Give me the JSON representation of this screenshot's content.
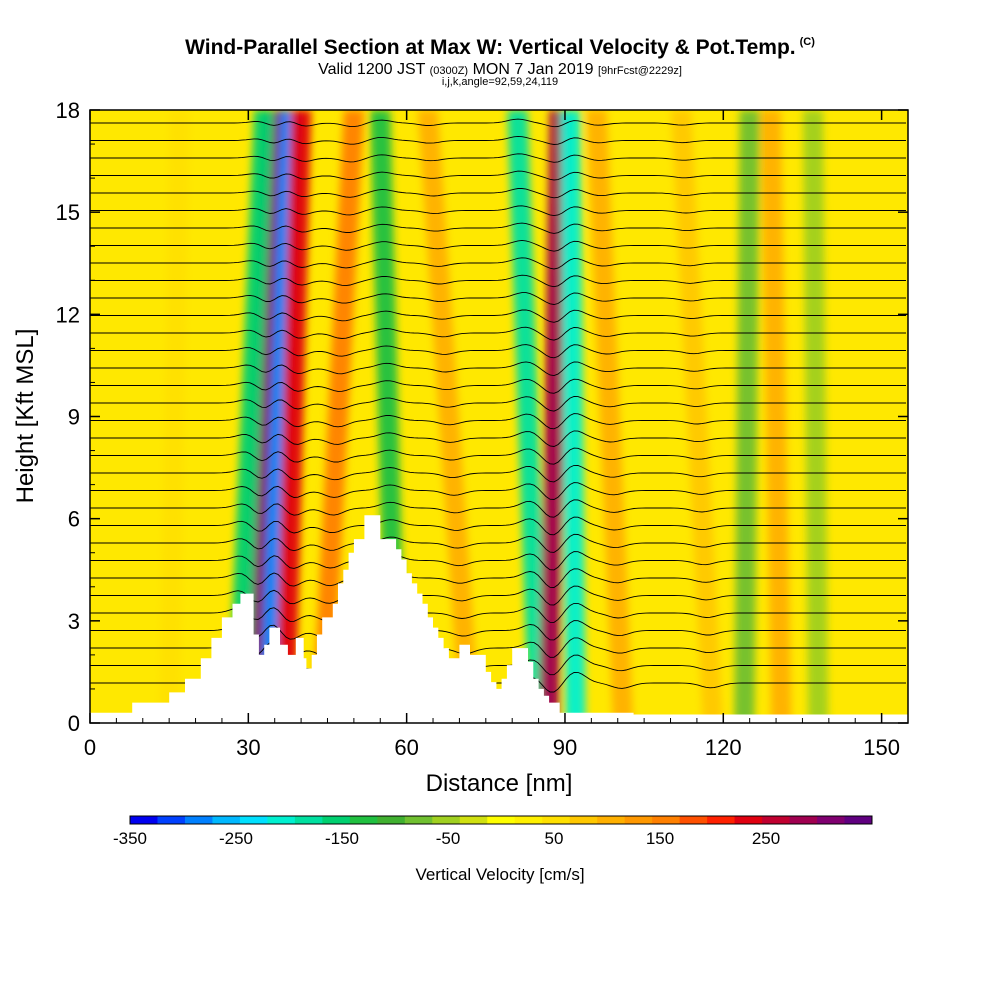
{
  "header": {
    "title": "Wind-Parallel Section at Max W: Vertical Velocity & Pot.Temp.",
    "title_tag": "(C)",
    "valid_prefix": "Valid 1200 JST",
    "valid_utc": "(0300Z)",
    "valid_date": "MON 7 Jan 2019",
    "forecast": "[9hrFcst@2229z]",
    "indices": "i,j,k,angle=92,59,24,119"
  },
  "chart_data": {
    "type": "heatmap",
    "title": "Wind-Parallel Section at Max W: Vertical Velocity & Pot.Temp.",
    "xlabel": "Distance [nm]",
    "ylabel": "Height [Kft MSL]",
    "xlim": [
      0,
      155
    ],
    "ylim": [
      0,
      18
    ],
    "xticks": [
      "0",
      "30",
      "60",
      "90",
      "120",
      "150"
    ],
    "xtick_values": [
      0,
      30,
      60,
      90,
      120,
      150
    ],
    "yticks": [
      "0",
      "3",
      "6",
      "9",
      "12",
      "15",
      "18"
    ],
    "ytick_values": [
      0,
      3,
      6,
      9,
      12,
      15,
      18
    ],
    "colorbar": {
      "label": "Vertical Velocity [cm/s]",
      "range": [
        -350,
        350
      ],
      "ticks": [
        "-350",
        "-250",
        "-150",
        "-50",
        "50",
        "150",
        "250"
      ],
      "tick_values": [
        -350,
        -250,
        -150,
        -50,
        50,
        150,
        250
      ],
      "colors": [
        "#0000f0",
        "#0040ff",
        "#0080ff",
        "#00b8ff",
        "#00e0ff",
        "#00f0d0",
        "#00e0a0",
        "#00d070",
        "#20c040",
        "#40b030",
        "#70c030",
        "#a0d020",
        "#d0e010",
        "#ffff00",
        "#fff000",
        "#ffe000",
        "#ffc800",
        "#ffb000",
        "#ff9800",
        "#ff8000",
        "#ff5000",
        "#ff2000",
        "#e00010",
        "#c00030",
        "#a00050",
        "#800070",
        "#600080"
      ]
    },
    "velocity_bands": [
      {
        "x_bottom": 31,
        "x_top": 35,
        "w": 300
      },
      {
        "x_bottom": 34,
        "x_top": 38,
        "w": -280
      },
      {
        "x_bottom": 37,
        "x_top": 40,
        "w": 230
      },
      {
        "x_bottom": 28,
        "x_top": 33,
        "w": -150
      },
      {
        "x_bottom": 44,
        "x_top": 50,
        "w": 160
      },
      {
        "x_bottom": 58,
        "x_top": 55,
        "w": -130
      },
      {
        "x_bottom": 72,
        "x_top": 64,
        "w": 110
      },
      {
        "x_bottom": 85,
        "x_top": 81,
        "w": -170
      },
      {
        "x_bottom": 87,
        "x_top": 89,
        "w": 280
      },
      {
        "x_bottom": 92,
        "x_top": 91,
        "w": -210
      },
      {
        "x_bottom": 101,
        "x_top": 96,
        "w": 100
      },
      {
        "x_bottom": 118,
        "x_top": 112,
        "w": 90
      },
      {
        "x_bottom": 124,
        "x_top": 125,
        "w": -70
      },
      {
        "x_bottom": 131,
        "x_top": 129,
        "w": 100
      },
      {
        "x_bottom": 138,
        "x_top": 137,
        "w": -60
      },
      {
        "x_bottom": 15,
        "x_top": 17,
        "w": 60
      }
    ],
    "terrain": [
      [
        0,
        0.3
      ],
      [
        8,
        0.3
      ],
      [
        8,
        0.6
      ],
      [
        15,
        0.6
      ],
      [
        15,
        0.9
      ],
      [
        18,
        0.9
      ],
      [
        18,
        1.3
      ],
      [
        21,
        1.3
      ],
      [
        21,
        1.9
      ],
      [
        23,
        1.9
      ],
      [
        23,
        2.5
      ],
      [
        25,
        2.5
      ],
      [
        25,
        3.1
      ],
      [
        27,
        3.1
      ],
      [
        27,
        3.5
      ],
      [
        28.5,
        3.5
      ],
      [
        28.5,
        3.8
      ],
      [
        31,
        3.8
      ],
      [
        31,
        2.6
      ],
      [
        32,
        2.6
      ],
      [
        32,
        2.0
      ],
      [
        33,
        2.0
      ],
      [
        33,
        2.3
      ],
      [
        34,
        2.3
      ],
      [
        34,
        2.8
      ],
      [
        36,
        2.8
      ],
      [
        36,
        2.3
      ],
      [
        37.5,
        2.3
      ],
      [
        37.5,
        2.0
      ],
      [
        39,
        2.0
      ],
      [
        39,
        2.5
      ],
      [
        40.5,
        2.5
      ],
      [
        40.5,
        1.9
      ],
      [
        41,
        1.9
      ],
      [
        41,
        1.6
      ],
      [
        42,
        1.6
      ],
      [
        42,
        2.0
      ],
      [
        43,
        2.0
      ],
      [
        43,
        2.6
      ],
      [
        44,
        2.6
      ],
      [
        44,
        3.1
      ],
      [
        46,
        3.1
      ],
      [
        46,
        3.5
      ],
      [
        47,
        3.5
      ],
      [
        47,
        4.1
      ],
      [
        48,
        4.1
      ],
      [
        48,
        4.5
      ],
      [
        49,
        4.5
      ],
      [
        49,
        5.0
      ],
      [
        50,
        5.0
      ],
      [
        50,
        5.4
      ],
      [
        52,
        5.4
      ],
      [
        52,
        6.1
      ],
      [
        55,
        6.1
      ],
      [
        55,
        5.4
      ],
      [
        58,
        5.4
      ],
      [
        58,
        5.1
      ],
      [
        59,
        5.1
      ],
      [
        59,
        4.8
      ],
      [
        60,
        4.8
      ],
      [
        60,
        4.4
      ],
      [
        61,
        4.4
      ],
      [
        61,
        4.1
      ],
      [
        62,
        4.1
      ],
      [
        62,
        3.8
      ],
      [
        63,
        3.8
      ],
      [
        63,
        3.5
      ],
      [
        64,
        3.5
      ],
      [
        64,
        3.1
      ],
      [
        65,
        3.1
      ],
      [
        65,
        2.8
      ],
      [
        66,
        2.8
      ],
      [
        66,
        2.5
      ],
      [
        67,
        2.5
      ],
      [
        67,
        2.2
      ],
      [
        68,
        2.2
      ],
      [
        68,
        1.9
      ],
      [
        70,
        1.9
      ],
      [
        70,
        2.3
      ],
      [
        72,
        2.3
      ],
      [
        72,
        2.0
      ],
      [
        75,
        2.0
      ],
      [
        75,
        1.5
      ],
      [
        76,
        1.5
      ],
      [
        76,
        1.2
      ],
      [
        77,
        1.2
      ],
      [
        77,
        1.0
      ],
      [
        78,
        1.0
      ],
      [
        78,
        1.3
      ],
      [
        79,
        1.3
      ],
      [
        79,
        1.7
      ],
      [
        80,
        1.7
      ],
      [
        80,
        2.2
      ],
      [
        83,
        2.2
      ],
      [
        83,
        1.8
      ],
      [
        84,
        1.8
      ],
      [
        84,
        1.3
      ],
      [
        85,
        1.3
      ],
      [
        85,
        1.0
      ],
      [
        86,
        1.0
      ],
      [
        86,
        0.8
      ],
      [
        87,
        0.8
      ],
      [
        87,
        0.6
      ],
      [
        89,
        0.6
      ],
      [
        89,
        0.3
      ],
      [
        103,
        0.3
      ],
      [
        103,
        0.25
      ],
      [
        155,
        0.25
      ]
    ]
  }
}
